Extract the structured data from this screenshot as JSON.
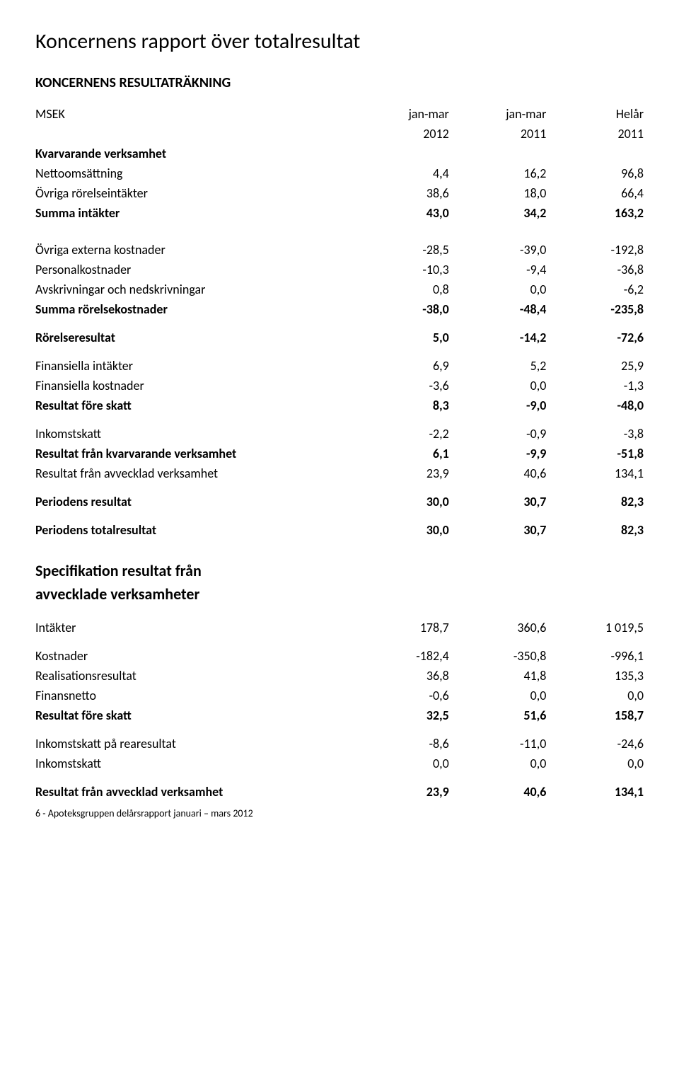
{
  "title": "Koncernens rapport över totalresultat",
  "subtitle": "KONCERNENS RESULTATRÄKNING",
  "header": {
    "msek": "MSEK",
    "col1_top": "jan-mar",
    "col1_bot": "2012",
    "col2_top": "jan-mar",
    "col2_bot": "2011",
    "col3_top": "Helår",
    "col3_bot": "2011"
  },
  "rows": {
    "kvarvarande": "Kvarvarande verksamhet",
    "nettooms": {
      "label": "Nettoomsättning",
      "c1": "4,4",
      "c2": "16,2",
      "c3": "96,8"
    },
    "ovrigaint": {
      "label": "Övriga rörelseintäkter",
      "c1": "38,6",
      "c2": "18,0",
      "c3": "66,4"
    },
    "summaint": {
      "label": "Summa intäkter",
      "c1": "43,0",
      "c2": "34,2",
      "c3": "163,2"
    },
    "ovrigaext": {
      "label": "Övriga externa kostnader",
      "c1": "-28,5",
      "c2": "-39,0",
      "c3": "-192,8"
    },
    "personal": {
      "label": "Personalkostnader",
      "c1": "-10,3",
      "c2": "-9,4",
      "c3": "-36,8"
    },
    "avskr": {
      "label": "Avskrivningar och nedskrivningar",
      "c1": "0,8",
      "c2": "0,0",
      "c3": "-6,2"
    },
    "summakost": {
      "label": "Summa rörelsekostnader",
      "c1": "-38,0",
      "c2": "-48,4",
      "c3": "-235,8"
    },
    "rorelse": {
      "label": "Rörelseresultat",
      "c1": "5,0",
      "c2": "-14,2",
      "c3": "-72,6"
    },
    "finint": {
      "label": "Finansiella intäkter",
      "c1": "6,9",
      "c2": "5,2",
      "c3": "25,9"
    },
    "finkost": {
      "label": "Finansiella kostnader",
      "c1": "-3,6",
      "c2": "0,0",
      "c3": "-1,3"
    },
    "resfs": {
      "label": "Resultat före skatt",
      "c1": "8,3",
      "c2": "-9,0",
      "c3": "-48,0"
    },
    "inkomst": {
      "label": "Inkomstskatt",
      "c1": "-2,2",
      "c2": "-0,9",
      "c3": "-3,8"
    },
    "reskvar": {
      "label": "Resultat från kvarvarande verksamhet",
      "c1": "6,1",
      "c2": "-9,9",
      "c3": "-51,8"
    },
    "resavv": {
      "label": "Resultat från avvecklad verksamhet",
      "c1": "23,9",
      "c2": "40,6",
      "c3": "134,1"
    },
    "periodres": {
      "label": "Periodens resultat",
      "c1": "30,0",
      "c2": "30,7",
      "c3": "82,3"
    },
    "periodtot": {
      "label": "Periodens totalresultat",
      "c1": "30,0",
      "c2": "30,7",
      "c3": "82,3"
    }
  },
  "spec": {
    "heading1": "Specifikation resultat från",
    "heading2": "avvecklade verksamheter",
    "intakter": {
      "label": "Intäkter",
      "c1": "178,7",
      "c2": "360,6",
      "c3": "1 019,5"
    },
    "kostnader": {
      "label": "Kostnader",
      "c1": "-182,4",
      "c2": "-350,8",
      "c3": "-996,1"
    },
    "realres": {
      "label": "Realisationsresultat",
      "c1": "36,8",
      "c2": "41,8",
      "c3": "135,3"
    },
    "finnetto": {
      "label": "Finansnetto",
      "c1": "-0,6",
      "c2": "0,0",
      "c3": "0,0"
    },
    "resfs2": {
      "label": "Resultat före skatt",
      "c1": "32,5",
      "c2": "51,6",
      "c3": "158,7"
    },
    "inkomstrea": {
      "label": "Inkomstskatt på rearesultat",
      "c1": "-8,6",
      "c2": "-11,0",
      "c3": "-24,6"
    },
    "inkomst2": {
      "label": "Inkomstskatt",
      "c1": "0,0",
      "c2": "0,0",
      "c3": "0,0"
    },
    "resavv2": {
      "label": "Resultat från avvecklad verksamhet",
      "c1": "23,9",
      "c2": "40,6",
      "c3": "134,1"
    }
  },
  "footer": "6 - Apoteksgruppen delårsrapport januari – mars 2012"
}
